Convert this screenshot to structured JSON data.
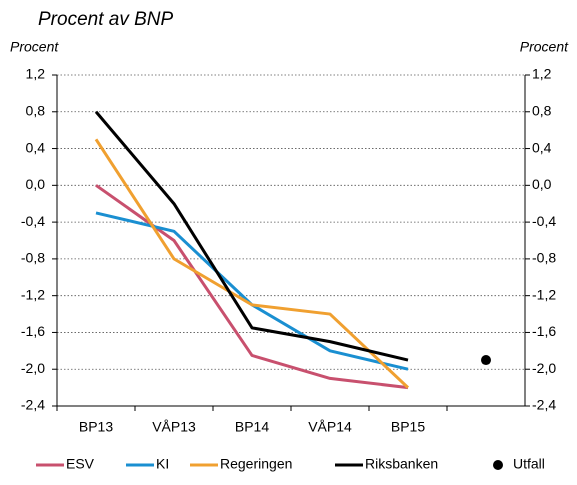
{
  "chart_data": {
    "type": "line",
    "title": "Procent av BNP",
    "ylabel": "Procent",
    "y2label": "Procent",
    "categories": [
      "BP13",
      "VÅP13",
      "BP14",
      "VÅP14",
      "BP15",
      null
    ],
    "series": [
      {
        "name": "ESV",
        "color": "#c8506e",
        "values": [
          0.0,
          -0.6,
          -1.85,
          -2.1,
          -2.2,
          null
        ]
      },
      {
        "name": "KI",
        "color": "#1a8fd1",
        "values": [
          -0.3,
          -0.5,
          -1.3,
          -1.8,
          -2.0,
          null
        ]
      },
      {
        "name": "Regeringen",
        "color": "#f0a030",
        "values": [
          0.5,
          -0.8,
          -1.3,
          -1.4,
          -2.2,
          null
        ]
      },
      {
        "name": "Riksbanken",
        "color": "#000000",
        "values": [
          0.8,
          -0.2,
          -1.55,
          -1.7,
          -1.9,
          null
        ]
      },
      {
        "name": "Utfall",
        "color": "#000000",
        "mode": "markers",
        "values": [
          null,
          null,
          null,
          null,
          null,
          -1.9
        ]
      }
    ],
    "ylim": [
      -2.4,
      1.2
    ],
    "yticks": [
      {
        "value": -2.4,
        "label": "-2,4"
      },
      {
        "value": -2.0,
        "label": "-2,0"
      },
      {
        "value": -1.6,
        "label": "-1,6"
      },
      {
        "value": -1.2,
        "label": "-1,2"
      },
      {
        "value": -0.8,
        "label": "-0,8"
      },
      {
        "value": -0.4,
        "label": "-0,4"
      },
      {
        "value": 0,
        "label": "0,0"
      },
      {
        "value": 0.4,
        "label": "0,4"
      },
      {
        "value": 0.8,
        "label": "0,8"
      },
      {
        "value": 1.2,
        "label": "1,2"
      }
    ],
    "y2lim": [
      -2.4,
      1.2
    ],
    "y2ticks": [
      {
        "value": -2.4,
        "label": "-2,4"
      },
      {
        "value": -2.0,
        "label": "-2,0"
      },
      {
        "value": -1.6,
        "label": "-1,6"
      },
      {
        "value": -1.2,
        "label": "-1,2"
      },
      {
        "value": -0.8,
        "label": "-0,8"
      },
      {
        "value": -0.4,
        "label": "-0,4"
      },
      {
        "value": 0,
        "label": "0,0"
      },
      {
        "value": 0.4,
        "label": "0,4"
      },
      {
        "value": 0.8,
        "label": "0,8"
      },
      {
        "value": 1.2,
        "label": "1,2"
      }
    ],
    "grid": true,
    "legend": "bottom"
  }
}
